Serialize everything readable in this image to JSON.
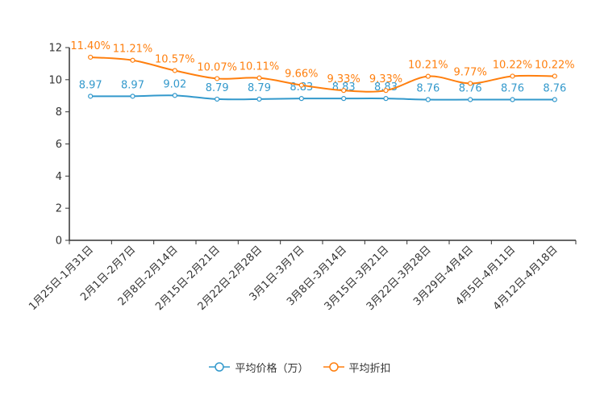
{
  "chart_data": {
    "type": "line",
    "title": "",
    "xlabel": "",
    "ylabel": "",
    "ylim": [
      0,
      12
    ],
    "yticks": [
      "0",
      "2",
      "4",
      "6",
      "8",
      "10",
      "12"
    ],
    "categories": [
      "1月25日-1月31日",
      "2月1日-2月7日",
      "2月8日-2月14日",
      "2月15日-2月21日",
      "2月22日-2月28日",
      "3月1日-3月7日",
      "3月8日-3月14日",
      "3月15日-3月21日",
      "3月22日-3月28日",
      "3月29日-4月4日",
      "4月5日-4月11日",
      "4月12日-4月18日"
    ],
    "series": [
      {
        "name": "平均价格（万）",
        "color": "#3399cc",
        "values": [
          8.97,
          8.97,
          9.02,
          8.79,
          8.79,
          8.83,
          8.83,
          8.83,
          8.76,
          8.76,
          8.76,
          8.76
        ],
        "labels": [
          "8.97",
          "8.97",
          "9.02",
          "8.79",
          "8.79",
          "8.83",
          "8.83",
          "8.83",
          "8.76",
          "8.76",
          "8.76",
          "8.76"
        ]
      },
      {
        "name": "平均折扣",
        "color": "#ff7f0e",
        "values": [
          11.4,
          11.21,
          10.57,
          10.07,
          10.11,
          9.66,
          9.33,
          9.33,
          10.21,
          9.77,
          10.22,
          10.22
        ],
        "labels": [
          "11.40%",
          "11.21%",
          "10.57%",
          "10.07%",
          "10.11%",
          "9.66%",
          "9.33%",
          "9.33%",
          "10.21%",
          "9.77%",
          "10.22%",
          "10.22%"
        ]
      }
    ],
    "legend_position": "bottom-center",
    "grid": false
  }
}
